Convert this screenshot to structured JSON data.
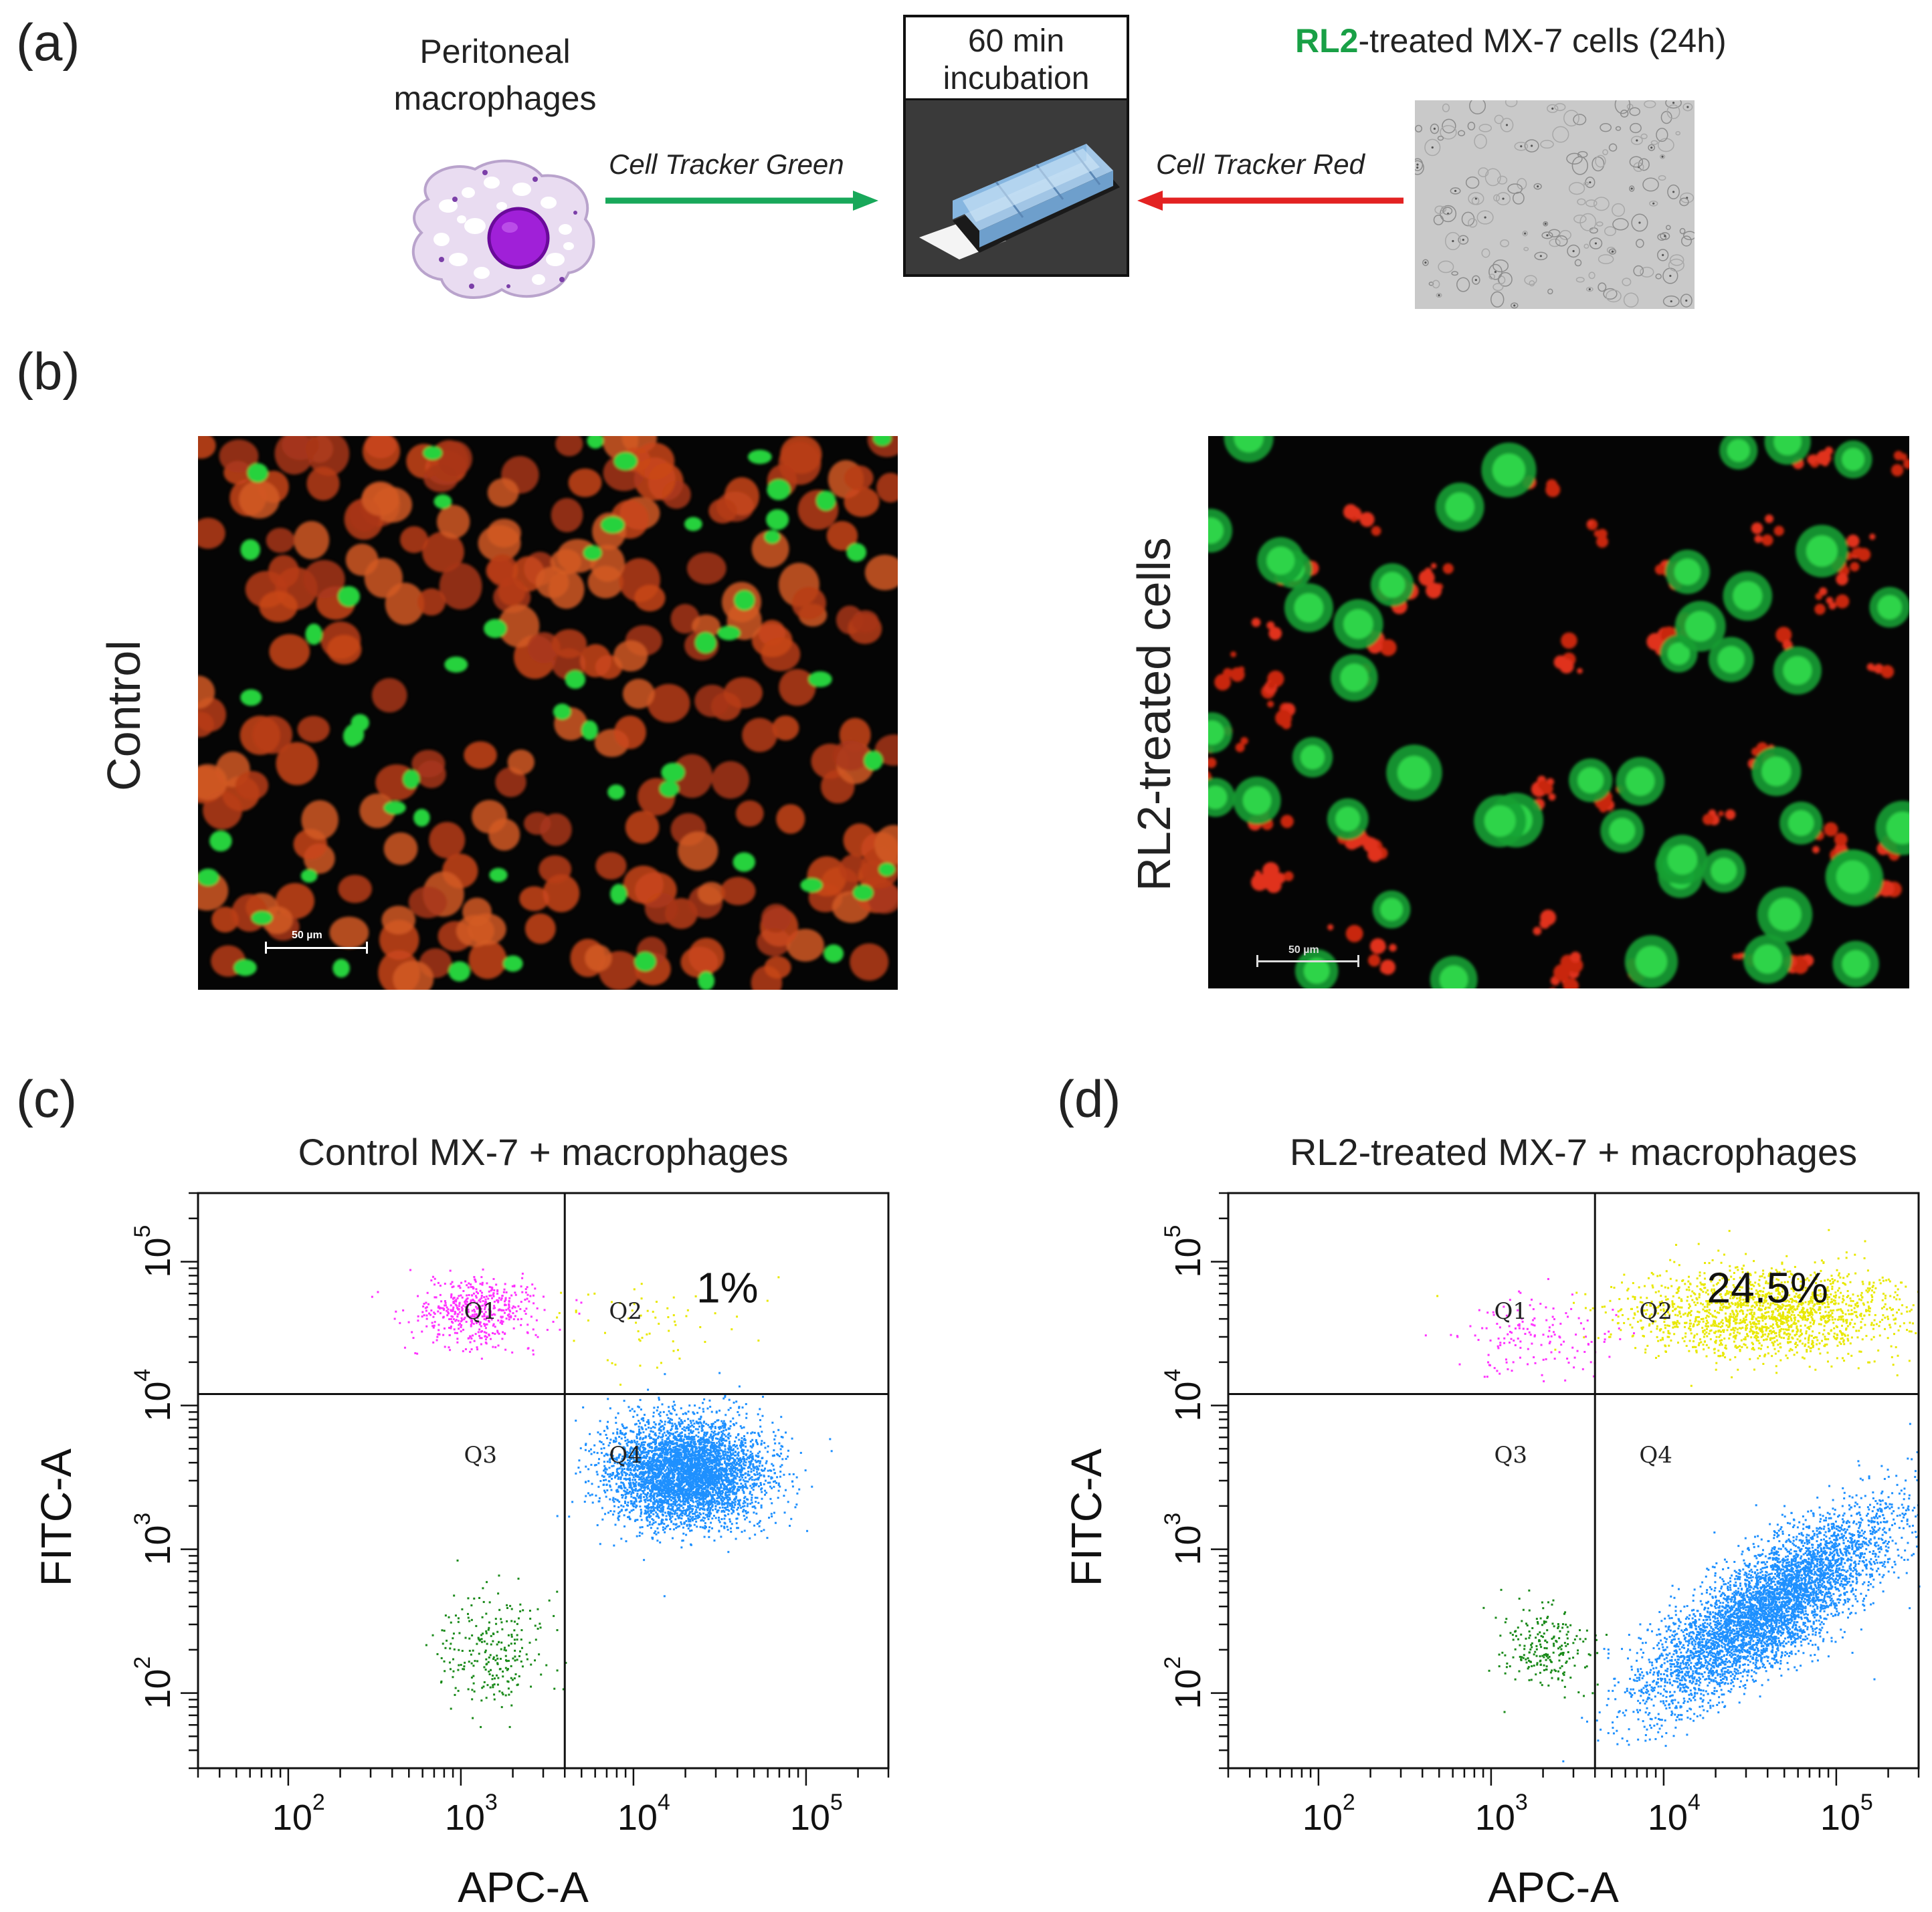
{
  "panel_labels": {
    "a": "(a)",
    "b": "(b)",
    "c": "(c)",
    "d": "(d)"
  },
  "schematic": {
    "macrophage_label_line1": "Peritoneal",
    "macrophage_label_line2": "macrophages",
    "green_arrow_label": "Cell Tracker Green",
    "red_arrow_label": "Cell Tracker Red",
    "incubation_line1": "60 min",
    "incubation_line2": "incubation",
    "treated_title_highlight": "RL2",
    "treated_title_rest": "-treated MX-7 cells (24h)",
    "colors": {
      "green_arrow": "#18a85a",
      "red_arrow": "#e32222",
      "rl2_text": "#19a046"
    }
  },
  "micrographs": {
    "control_label": "Control",
    "treated_label": "RL2-treated cells",
    "scale_bar_left": "50 µm",
    "scale_bar_right": "50 µm"
  },
  "chart_data": [
    {
      "type": "scatter",
      "panel": "c",
      "title": "Control MX-7 + macrophages",
      "xlabel": "APC-A",
      "ylabel": "FITC-A",
      "x_scale": "log",
      "y_scale": "log",
      "xlim": [
        30,
        300000
      ],
      "ylim": [
        30,
        300000
      ],
      "x_tick_labels": [
        "10",
        "10",
        "10",
        "10"
      ],
      "x_tick_exponents": [
        "2",
        "3",
        "4",
        "5"
      ],
      "y_tick_labels": [
        "10",
        "10",
        "10",
        "10"
      ],
      "y_tick_exponents": [
        "2",
        "3",
        "4",
        "5"
      ],
      "gates": {
        "x": 4000,
        "y": 12000
      },
      "quadrant_labels": [
        {
          "text": "Q1",
          "x": 1300,
          "y": 40000
        },
        {
          "text": "Q2",
          "x": 9000,
          "y": 40000
        },
        {
          "text": "Q3",
          "x": 1300,
          "y": 4000
        },
        {
          "text": "Q4",
          "x": 9000,
          "y": 4000
        }
      ],
      "annotation": "1%",
      "populations": [
        {
          "quadrant": "Q1",
          "color": "#ff33ff",
          "center": [
            1200,
            45000
          ],
          "spread": [
            0.18,
            0.12
          ],
          "count": 500
        },
        {
          "quadrant": "Q2",
          "color": "#e8e800",
          "center": [
            12000,
            40000
          ],
          "spread": [
            0.3,
            0.15
          ],
          "count": 60
        },
        {
          "quadrant": "Q3",
          "color": "#1a8a1a",
          "center": [
            1500,
            200
          ],
          "spread": [
            0.15,
            0.2
          ],
          "count": 250
        },
        {
          "quadrant": "Q4",
          "color": "#1e90ff",
          "center": [
            20000,
            3500
          ],
          "spread": [
            0.22,
            0.18
          ],
          "count": 4500
        }
      ]
    },
    {
      "type": "scatter",
      "panel": "d",
      "title": "RL2-treated MX-7 + macrophages",
      "xlabel": "APC-A",
      "ylabel": "FITC-A",
      "x_scale": "log",
      "y_scale": "log",
      "xlim": [
        30,
        300000
      ],
      "ylim": [
        30,
        300000
      ],
      "x_tick_labels": [
        "10",
        "10",
        "10",
        "10"
      ],
      "x_tick_exponents": [
        "2",
        "3",
        "4",
        "5"
      ],
      "y_tick_labels": [
        "10",
        "10",
        "10",
        "10"
      ],
      "y_tick_exponents": [
        "2",
        "3",
        "4",
        "5"
      ],
      "gates": {
        "x": 4000,
        "y": 12000
      },
      "quadrant_labels": [
        {
          "text": "Q1",
          "x": 1300,
          "y": 40000
        },
        {
          "text": "Q2",
          "x": 9000,
          "y": 40000
        },
        {
          "text": "Q3",
          "x": 1300,
          "y": 4000
        },
        {
          "text": "Q4",
          "x": 9000,
          "y": 4000
        }
      ],
      "annotation": "24.5%",
      "populations": [
        {
          "quadrant": "Q1",
          "color": "#ff33ff",
          "center": [
            1800,
            30000
          ],
          "spread": [
            0.25,
            0.14
          ],
          "count": 150
        },
        {
          "quadrant": "Q2",
          "color": "#e8e800",
          "center": [
            40000,
            45000
          ],
          "spread": [
            0.4,
            0.15
          ],
          "count": 1800
        },
        {
          "quadrant": "Q3",
          "color": "#1a8a1a",
          "center": [
            2000,
            200
          ],
          "spread": [
            0.12,
            0.15
          ],
          "count": 220
        },
        {
          "quadrant": "Q4",
          "color": "#1e90ff",
          "center": [
            40000,
            400
          ],
          "spread": [
            0.35,
            0.35
          ],
          "count": 5000
        }
      ]
    }
  ]
}
